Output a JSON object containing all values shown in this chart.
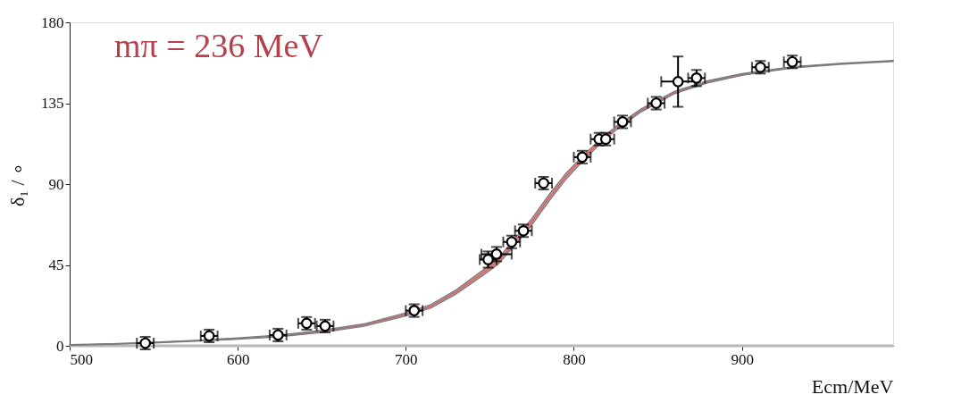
{
  "chart_data": {
    "type": "scatter",
    "title": "mπ = 236 MeV",
    "xlabel": "Ecm/MeV",
    "ylabel": "δ₁ / ∘",
    "xlim": [
      500,
      990
    ],
    "xticks": [
      500,
      600,
      700,
      800,
      900
    ],
    "ylim": [
      0,
      180
    ],
    "yticks": [
      0,
      45,
      90,
      135,
      180
    ],
    "grid": false,
    "ref_lines": [
      {
        "axis": "y",
        "value": 0,
        "color": "#b8b8b8"
      }
    ],
    "series": [
      {
        "type": "line",
        "color": "#7a7a7a",
        "line_style": "solid",
        "x": [
          500,
          525,
          550,
          575,
          600,
          625,
          650,
          675,
          700,
          715,
          730,
          745,
          755,
          765,
          775,
          785,
          795,
          805,
          815,
          825,
          840,
          860,
          880,
          900,
          930,
          960,
          990
        ],
        "values": [
          0.5,
          1,
          1.8,
          2.8,
          4,
          5.5,
          8,
          11.5,
          17.5,
          22,
          30,
          40,
          47,
          58,
          69,
          82,
          94,
          104,
          113,
          121,
          131,
          141,
          147,
          151,
          155,
          157,
          158.5
        ],
        "lower": [
          0.3,
          0.8,
          1.5,
          2.5,
          3.6,
          5,
          7.4,
          10.8,
          16.6,
          21,
          28.8,
          38.5,
          45.3,
          56.2,
          67.2,
          80.2,
          92.3,
          102.5,
          111.7,
          119.9,
          130.1,
          140.3,
          146.4,
          150.5,
          154.6,
          156.7,
          158.2
        ],
        "upper": [
          0.7,
          1.2,
          2.1,
          3.1,
          4.4,
          6,
          8.6,
          12.2,
          18.4,
          23,
          31.2,
          41.5,
          48.7,
          59.8,
          70.8,
          83.8,
          95.7,
          105.5,
          114.3,
          122.1,
          131.9,
          141.7,
          147.6,
          151.5,
          155.4,
          157.3,
          158.8
        ]
      },
      {
        "color": "#000000",
        "marker": "circle",
        "x": [
          545,
          583,
          624,
          641,
          652,
          705,
          749,
          754,
          763,
          770,
          782,
          805,
          815,
          819,
          829,
          849,
          862,
          873,
          911,
          930
        ],
        "values": [
          1.5,
          5.5,
          6,
          12.5,
          11,
          19.6,
          48,
          51,
          57.8,
          64,
          90.5,
          105,
          115,
          115,
          124.6,
          135,
          147,
          149,
          155,
          158
        ],
        "errors": [
          3.5,
          3.5,
          3.5,
          3.5,
          3.5,
          3.5,
          4.5,
          4,
          3.5,
          3.5,
          3.5,
          3.5,
          3.5,
          3.5,
          3.5,
          3.5,
          [
            133,
            161
          ],
          4.5,
          3.5,
          3.5
        ],
        "xerrors": [
          5,
          5,
          5,
          5,
          5,
          5,
          5,
          9,
          5,
          5,
          5,
          5,
          5,
          5,
          5,
          5,
          10,
          5,
          5,
          5
        ]
      }
    ]
  }
}
